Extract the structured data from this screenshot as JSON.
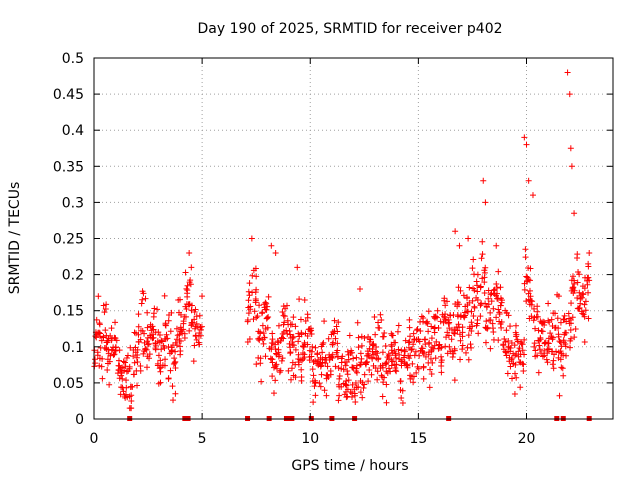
{
  "chart_data": {
    "type": "scatter",
    "title": "Day 190 of 2025, SRMTID for receiver p402",
    "xlabel": "GPS time / hours",
    "ylabel": "SRMTID / TECUs",
    "xlim": [
      0,
      24
    ],
    "ylim": [
      0,
      0.5
    ],
    "xticks": [
      0,
      5,
      10,
      15,
      20
    ],
    "yticks": [
      0,
      0.05,
      0.1,
      0.15,
      0.2,
      0.25,
      0.3,
      0.35,
      0.4,
      0.45,
      0.5
    ],
    "grid": true,
    "marker": "+",
    "colors": {
      "series": "#ff0000",
      "gap_marker": "#dd0000",
      "grid": "#a0a0a0"
    },
    "series": [
      {
        "name": "SRMTID",
        "x": [
          0.1,
          0.3,
          0.5,
          0.7,
          0.9,
          1.1,
          1.3,
          1.5,
          1.7,
          1.9,
          2.1,
          2.3,
          2.5,
          2.7,
          2.9,
          3.1,
          3.3,
          3.5,
          3.7,
          3.9,
          4.1,
          4.3,
          4.5,
          4.7,
          4.9,
          7.2,
          7.4,
          7.6,
          7.8,
          8.0,
          8.2,
          8.4,
          8.6,
          8.8,
          9.0,
          9.2,
          9.4,
          9.6,
          9.8,
          10.0,
          10.2,
          10.4,
          10.6,
          10.8,
          11.0,
          11.2,
          11.4,
          11.6,
          11.8,
          12.0,
          12.2,
          12.4,
          12.6,
          12.8,
          13.0,
          13.2,
          13.4,
          13.6,
          13.8,
          14.0,
          14.2,
          14.4,
          14.6,
          14.8,
          15.0,
          15.2,
          15.4,
          15.6,
          15.8,
          16.0,
          16.2,
          16.4,
          16.6,
          16.8,
          17.0,
          17.2,
          17.4,
          17.6,
          17.8,
          18.0,
          18.2,
          18.4,
          18.6,
          18.8,
          19.0,
          19.2,
          19.4,
          19.6,
          19.8,
          20.0,
          20.2,
          20.4,
          20.6,
          20.8,
          21.0,
          21.2,
          21.4,
          21.6,
          21.8,
          22.0,
          22.2,
          22.4,
          22.6,
          22.8
        ],
        "y": [
          0.1,
          0.09,
          0.11,
          0.08,
          0.1,
          0.09,
          0.07,
          0.05,
          0.04,
          0.08,
          0.1,
          0.12,
          0.11,
          0.13,
          0.1,
          0.09,
          0.12,
          0.1,
          0.08,
          0.11,
          0.13,
          0.17,
          0.15,
          0.12,
          0.13,
          0.15,
          0.17,
          0.12,
          0.1,
          0.14,
          0.09,
          0.07,
          0.1,
          0.13,
          0.12,
          0.1,
          0.11,
          0.09,
          0.12,
          0.11,
          0.07,
          0.06,
          0.08,
          0.07,
          0.09,
          0.1,
          0.06,
          0.05,
          0.07,
          0.06,
          0.08,
          0.07,
          0.09,
          0.08,
          0.1,
          0.09,
          0.08,
          0.07,
          0.09,
          0.08,
          0.07,
          0.08,
          0.09,
          0.1,
          0.09,
          0.1,
          0.11,
          0.1,
          0.12,
          0.1,
          0.13,
          0.12,
          0.1,
          0.15,
          0.13,
          0.14,
          0.12,
          0.17,
          0.16,
          0.19,
          0.15,
          0.13,
          0.16,
          0.14,
          0.11,
          0.09,
          0.08,
          0.1,
          0.09,
          0.2,
          0.17,
          0.13,
          0.11,
          0.12,
          0.1,
          0.11,
          0.13,
          0.09,
          0.12,
          0.14,
          0.16,
          0.18,
          0.15,
          0.19
        ],
        "isolated_points": {
          "x": [
            0.2,
            4.4,
            4.5,
            7.3,
            8.2,
            8.4,
            9.4,
            12.3,
            16.7,
            16.9,
            17.3,
            18.0,
            18.1,
            18.6,
            19.9,
            20.0,
            20.1,
            20.3,
            21.0,
            21.9,
            22.0,
            22.05,
            22.1,
            22.2,
            22.9
          ],
          "y": [
            0.17,
            0.23,
            0.21,
            0.25,
            0.24,
            0.23,
            0.21,
            0.18,
            0.26,
            0.24,
            0.25,
            0.33,
            0.3,
            0.24,
            0.39,
            0.38,
            0.33,
            0.31,
            0.16,
            0.48,
            0.45,
            0.375,
            0.35,
            0.285,
            0.23
          ]
        }
      }
    ],
    "gap_markers_x": [
      1.65,
      4.2,
      4.35,
      7.1,
      8.1,
      8.9,
      9.05,
      9.15,
      10.05,
      11.0,
      12.05,
      16.4,
      21.4,
      21.7,
      22.9
    ]
  }
}
